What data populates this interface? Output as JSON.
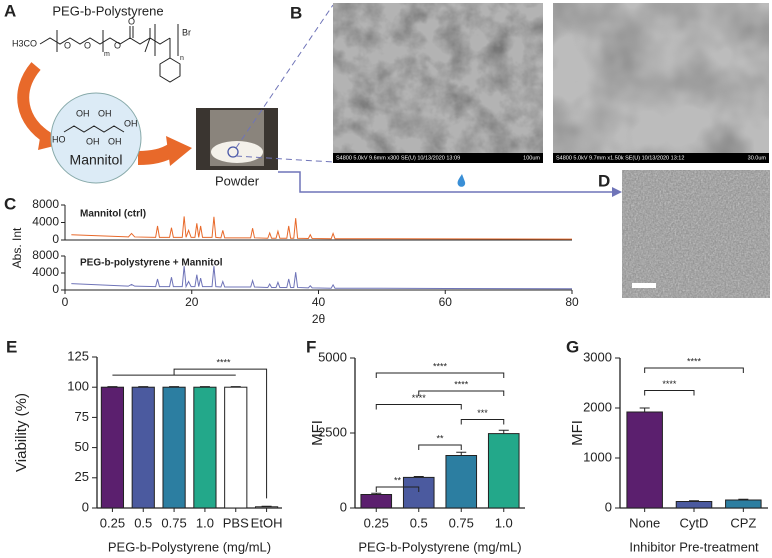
{
  "figure": {
    "panel_labels": [
      "A",
      "B",
      "C",
      "D",
      "E",
      "F",
      "G"
    ],
    "structure_title": "PEG-b-Polystyrene",
    "structure_atoms": [
      "H3CO",
      "O",
      "O",
      "m",
      "O",
      "O",
      "Br",
      "n"
    ],
    "mannitol_atoms": [
      "HO",
      "OH",
      "OH",
      "OH",
      "OH",
      "OH"
    ],
    "mannitol": "Mannitol",
    "powder": "Powder",
    "sem": [
      {
        "caption": "S4800 5.0kV 9.6mm x300 SE(U) 10/13/2020 13:09",
        "scale": "100um"
      },
      {
        "caption": "S4800 5.0kV 9.7mm x1.50k SE(U) 10/13/2020 13:12",
        "scale": "30.0um"
      }
    ]
  },
  "chart_data": [
    {
      "type": "line",
      "ylabel": "Abs. Int",
      "x": [
        1,
        10,
        10.5,
        11,
        14.3,
        14.6,
        14.9,
        16.5,
        16.8,
        17.1,
        18.5,
        18.8,
        19.1,
        19.5,
        19.9,
        20.5,
        20.8,
        21.1,
        21.4,
        21.7,
        23.2,
        23.5,
        23.8,
        24.6,
        24.9,
        25.2,
        29.3,
        29.6,
        29.9,
        32.0,
        32.3,
        32.6,
        33.3,
        33.6,
        33.9,
        35.0,
        35.3,
        35.6,
        36.1,
        36.4,
        36.7,
        38.4,
        38.7,
        39.0,
        42.0,
        42.3,
        42.6,
        50,
        60,
        80
      ],
      "series": [
        {
          "name": "Mannitol (ctrl)",
          "color": "#e8692a",
          "values": [
            1200,
            700,
            1500,
            700,
            600,
            3200,
            600,
            600,
            2800,
            600,
            600,
            5400,
            600,
            2200,
            600,
            600,
            3800,
            600,
            3200,
            600,
            600,
            5300,
            600,
            500,
            2200,
            500,
            500,
            2700,
            500,
            400,
            1600,
            400,
            400,
            2000,
            400,
            400,
            3200,
            400,
            400,
            5000,
            400,
            350,
            1200,
            350,
            300,
            1500,
            300,
            300,
            250,
            200
          ]
        }
      ],
      "xlim": [
        0,
        80
      ],
      "ylim": [
        0,
        8000
      ],
      "yticks": [
        0,
        4000,
        8000
      ]
    },
    {
      "type": "line",
      "xlabel": "2θ",
      "x": [
        1,
        10,
        10.5,
        11,
        14.3,
        14.6,
        14.9,
        16.5,
        16.8,
        17.1,
        18.5,
        18.8,
        19.1,
        19.5,
        19.9,
        20.5,
        20.8,
        21.1,
        21.4,
        21.7,
        23.2,
        23.5,
        23.8,
        24.6,
        24.9,
        25.2,
        29.3,
        29.6,
        29.9,
        32.0,
        32.3,
        32.6,
        33.3,
        33.6,
        33.9,
        35.0,
        35.3,
        35.6,
        36.1,
        36.4,
        36.7,
        38.4,
        38.7,
        39.0,
        42.0,
        42.3,
        42.6,
        50,
        60,
        80
      ],
      "series": [
        {
          "name": "PEG-b-polystyrene + Mannitol",
          "color": "#6f74b8",
          "values": [
            1500,
            900,
            1300,
            900,
            800,
            2600,
            800,
            800,
            3000,
            800,
            800,
            5600,
            800,
            2000,
            800,
            800,
            3600,
            800,
            2800,
            800,
            800,
            5600,
            800,
            700,
            2000,
            700,
            700,
            2200,
            700,
            600,
            1400,
            600,
            600,
            1800,
            600,
            600,
            2600,
            600,
            600,
            4200,
            600,
            500,
            1000,
            500,
            400,
            1200,
            400,
            400,
            350,
            300
          ]
        }
      ],
      "xlim": [
        0,
        80
      ],
      "ylim": [
        0,
        8000
      ],
      "yticks": [
        0,
        4000,
        8000
      ],
      "xticks": [
        0,
        20,
        40,
        60,
        80
      ]
    },
    {
      "type": "bar",
      "xlabel": "PEG-b-Polystyrene (mg/mL)",
      "ylabel": "Viability (%)",
      "categories": [
        "0.25",
        "0.5",
        "0.75",
        "1.0",
        "PBS",
        "EtOH"
      ],
      "values": [
        100,
        100,
        100,
        100,
        100,
        1
      ],
      "errors": [
        0.5,
        0.5,
        0.5,
        0.5,
        0.5,
        0.5
      ],
      "colors": [
        "#5b1f6e",
        "#4b5a9f",
        "#2c7ea1",
        "#23a88a",
        "#ffffff",
        "#ffffff"
      ],
      "ylim": [
        0,
        125
      ],
      "yticks": [
        0,
        25,
        50,
        75,
        100,
        125
      ],
      "annotations": [
        "****"
      ]
    },
    {
      "type": "bar",
      "xlabel": "PEG-b-Polystyrene (mg/mL)",
      "ylabel": "MFI",
      "categories": [
        "0.25",
        "0.5",
        "0.75",
        "1.0"
      ],
      "values": [
        450,
        1020,
        1750,
        2480
      ],
      "errors": [
        40,
        30,
        110,
        110
      ],
      "colors": [
        "#5b1f6e",
        "#4b5a9f",
        "#2c7ea1",
        "#23a88a"
      ],
      "ylim": [
        0,
        5000
      ],
      "yticks": [
        0,
        2500,
        5000
      ],
      "annotations": [
        "**",
        "**",
        "***",
        "****",
        "****",
        "****"
      ]
    },
    {
      "type": "bar",
      "xlabel": "Inhibitor Pre-treatment",
      "ylabel": "MFI",
      "categories": [
        "None",
        "CytD",
        "CPZ"
      ],
      "values": [
        1920,
        130,
        160
      ],
      "errors": [
        80,
        15,
        15
      ],
      "colors": [
        "#5b1f6e",
        "#4b5a9f",
        "#2c7ea1"
      ],
      "ylim": [
        0,
        3000
      ],
      "yticks": [
        0,
        1000,
        2000,
        3000
      ],
      "annotations": [
        "****",
        "****"
      ]
    }
  ]
}
